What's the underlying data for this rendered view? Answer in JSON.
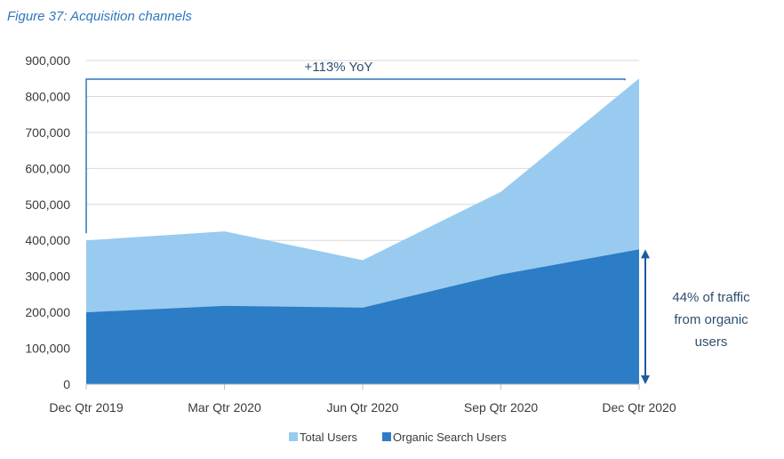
{
  "figure_title": "Figure 37: Acquisition channels",
  "colors": {
    "total": "#98cbef",
    "organic": "#2c7cc6",
    "bracket": "#2e77bc",
    "arrow": "#1e5aa0",
    "grid": "#d9d9d9"
  },
  "chart_data": {
    "type": "area",
    "title": "",
    "xlabel": "",
    "ylabel": "",
    "ylim": [
      0,
      900000
    ],
    "yticks": [
      "0",
      "100,000",
      "200,000",
      "300,000",
      "400,000",
      "500,000",
      "600,000",
      "700,000",
      "800,000",
      "900,000"
    ],
    "categories": [
      "Dec Qtr 2019",
      "Mar Qtr 2020",
      "Jun Qtr 2020",
      "Sep Qtr 2020",
      "Dec Qtr 2020"
    ],
    "series": [
      {
        "name": "Total Users",
        "values": [
          400000,
          425000,
          345000,
          535000,
          850000
        ]
      },
      {
        "name": "Organic Search Users",
        "values": [
          200000,
          218000,
          213000,
          305000,
          375000
        ]
      }
    ],
    "annotations": {
      "yoy": "+113% YoY",
      "organic_share": [
        "44% of traffic",
        "from organic",
        "users"
      ]
    },
    "grid": true,
    "legend": "bottom"
  }
}
